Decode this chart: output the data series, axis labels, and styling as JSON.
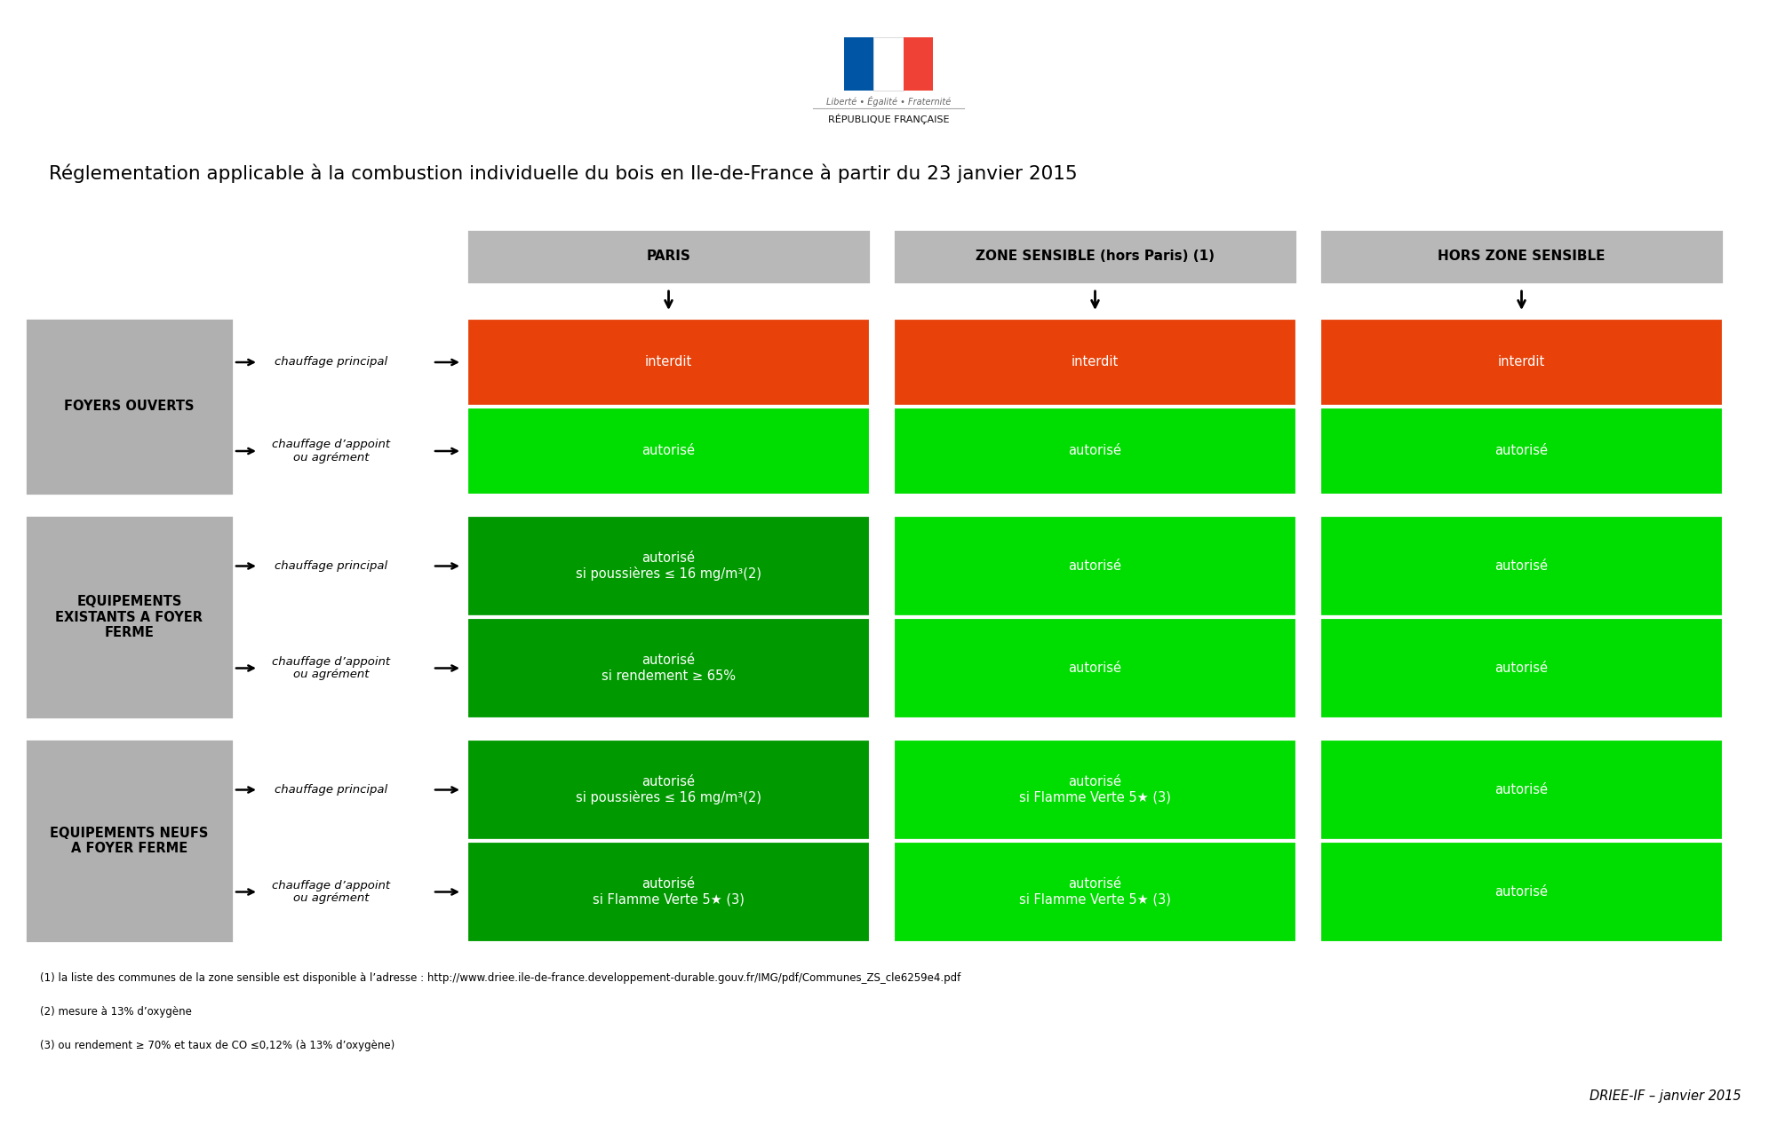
{
  "title": "Réglementation applicable à la combustion individuelle du bois en Ile-de-France à partir du 23 janvier 2015",
  "col_headers": [
    "PARIS",
    "ZONE SENSIBLE (hors Paris) (1)",
    "HORS ZONE SENSIBLE"
  ],
  "footnotes": [
    "(1) la liste des communes de la zone sensible est disponible à l’adresse : http://www.driee.ile-de-france.developpement-durable.gouv.fr/IMG/pdf/Communes_ZS_cle6259e4.pdf",
    "(2) mesure à 13% d’oxygène",
    "(3) ou rendement ≥ 70% et taux de CO ≤0,12% (à 13% d’oxygène)"
  ],
  "source": "DRIEE-IF – janvier 2015",
  "bg_color": "#ffffff",
  "header_bg": "#b8b8b8",
  "row_cat_bg": "#b0b0b0",
  "orange_red": "#e8420a",
  "bright_green": "#00dd00",
  "dark_green": "#009900",
  "flag_blue": "#0055A4",
  "flag_white": "#FFFFFF",
  "flag_red": "#EF4135",
  "cells_paris": [
    [
      "interdit",
      "#e8420a"
    ],
    [
      "autorisé",
      "#00dd00"
    ],
    [
      "autorisé\nsi poussières ≤ 16 mg/m³(2)",
      "#009900"
    ],
    [
      "autorisé\nsi rendement ≥ 65%",
      "#009900"
    ],
    [
      "autorisé\nsi poussières ≤ 16 mg/m³(2)",
      "#009900"
    ],
    [
      "autorisé\nsi Flamme Verte 5★ (3)",
      "#009900"
    ]
  ],
  "cells_zone": [
    [
      "interdit",
      "#e8420a"
    ],
    [
      "autorisé",
      "#00dd00"
    ],
    [
      "autorisé",
      "#00dd00"
    ],
    [
      "autorisé",
      "#00dd00"
    ],
    [
      "autorisé\nsi Flamme Verte 5★ (3)",
      "#00dd00"
    ],
    [
      "autorisé\nsi Flamme Verte 5★ (3)",
      "#00dd00"
    ]
  ],
  "cells_hors": [
    [
      "interdit",
      "#e8420a"
    ],
    [
      "autorisé",
      "#00dd00"
    ],
    [
      "autorisé",
      "#00dd00"
    ],
    [
      "autorisé",
      "#00dd00"
    ],
    [
      "autorisé",
      "#00dd00"
    ],
    [
      "autorisé",
      "#00dd00"
    ]
  ],
  "cat_labels": [
    "FOYERS OUVERTS",
    "EQUIPEMENTS\nEXISTANTS A FOYER\nFERME",
    "EQUIPEMENTS NEUFS\nA FOYER FERME"
  ],
  "sub_labels": [
    "chauffage principal",
    "chauffage d’appoint\nou agrément"
  ]
}
